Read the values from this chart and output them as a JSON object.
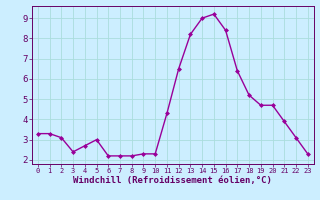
{
  "x": [
    0,
    1,
    2,
    3,
    4,
    5,
    6,
    7,
    8,
    9,
    10,
    11,
    12,
    13,
    14,
    15,
    16,
    17,
    18,
    19,
    20,
    21,
    22,
    23
  ],
  "y": [
    3.3,
    3.3,
    3.1,
    2.4,
    2.7,
    3.0,
    2.2,
    2.2,
    2.2,
    2.3,
    2.3,
    4.3,
    6.5,
    8.2,
    9.0,
    9.2,
    8.4,
    6.4,
    5.2,
    4.7,
    4.7,
    3.9,
    3.1,
    2.3
  ],
  "line_color": "#990099",
  "marker": "D",
  "marker_size": 2,
  "bg_color": "#cceeff",
  "grid_color": "#aadddd",
  "axis_color": "#660066",
  "spine_color": "#660066",
  "xlabel": "Windchill (Refroidissement éolien,°C)",
  "ylim": [
    1.8,
    9.6
  ],
  "yticks": [
    2,
    3,
    4,
    5,
    6,
    7,
    8,
    9
  ],
  "xlim": [
    -0.5,
    23.5
  ],
  "xticks": [
    0,
    1,
    2,
    3,
    4,
    5,
    6,
    7,
    8,
    9,
    10,
    11,
    12,
    13,
    14,
    15,
    16,
    17,
    18,
    19,
    20,
    21,
    22,
    23
  ],
  "xlabel_fontsize": 6.5,
  "tick_fontsize": 6.5,
  "linewidth": 1.0
}
